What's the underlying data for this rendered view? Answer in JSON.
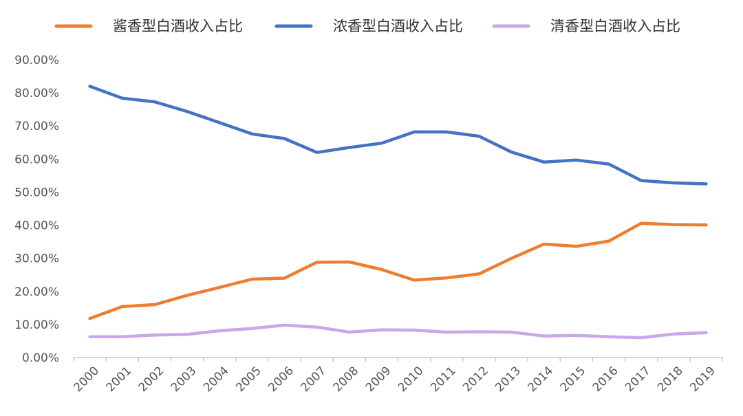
{
  "chart_data": {
    "type": "line",
    "categories": [
      "2000",
      "2001",
      "2002",
      "2003",
      "2004",
      "2005",
      "2006",
      "2007",
      "2008",
      "2009",
      "2010",
      "2011",
      "2012",
      "2013",
      "2014",
      "2015",
      "2016",
      "2017",
      "2018",
      "2019"
    ],
    "series": [
      {
        "name": "酱香型白酒收入占比",
        "color": "#ed7d31",
        "values": [
          11.8,
          15.4,
          16.0,
          18.8,
          21.2,
          23.7,
          24.0,
          28.8,
          28.9,
          26.6,
          23.4,
          24.1,
          25.3,
          30.0,
          34.3,
          33.6,
          35.2,
          40.6,
          40.2,
          40.1
        ]
      },
      {
        "name": "浓香型白酒收入占比",
        "color": "#4472c4",
        "values": [
          82.0,
          78.4,
          77.3,
          74.4,
          71.0,
          67.6,
          66.2,
          62.0,
          63.5,
          64.8,
          68.2,
          68.2,
          66.9,
          62.1,
          59.1,
          59.7,
          58.5,
          53.5,
          52.8,
          52.5
        ]
      },
      {
        "name": "清香型白酒收入占比",
        "color": "#c9a8e8",
        "values": [
          6.3,
          6.3,
          6.8,
          7.0,
          8.1,
          8.8,
          9.8,
          9.2,
          7.7,
          8.4,
          8.3,
          7.7,
          7.8,
          7.7,
          6.5,
          6.7,
          6.3,
          6.0,
          7.1,
          7.5
        ]
      }
    ],
    "y_ticks": [
      "0.00%",
      "10.00%",
      "20.00%",
      "30.00%",
      "40.00%",
      "50.00%",
      "60.00%",
      "70.00%",
      "80.00%",
      "90.00%"
    ],
    "ylim": [
      0,
      90
    ],
    "grid": false,
    "legend_position": "top"
  }
}
